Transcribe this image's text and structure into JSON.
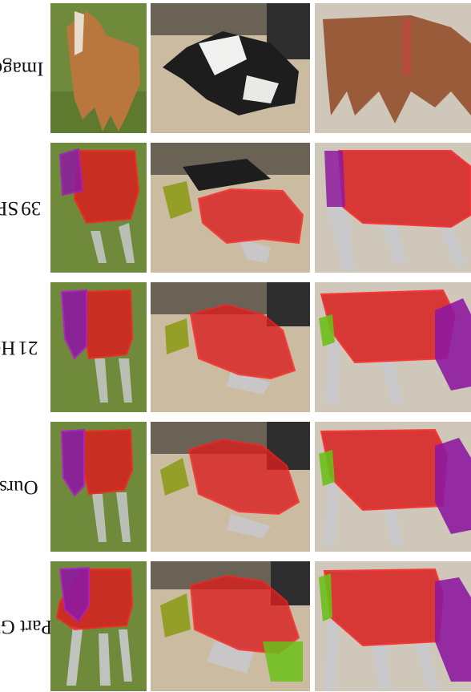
{
  "rows": [
    {
      "label": "Image",
      "ref": ""
    },
    {
      "label": "SPS [",
      "ref": "39",
      "suffix": "]"
    },
    {
      "label": "HC [",
      "ref": "21",
      "suffix": "]"
    },
    {
      "label": "Ours",
      "ref": ""
    },
    {
      "label": "Part GT.",
      "ref": ""
    }
  ],
  "columns": [
    "brown-pony",
    "lying-cow",
    "foal-with-collar"
  ],
  "part_colors": {
    "torso": "#d91e1e",
    "head": "#8e1aa0",
    "tail_or_neck": "#8a9a10",
    "legs": "#c8c8cc",
    "lower_legs": "#6bbf1a"
  }
}
